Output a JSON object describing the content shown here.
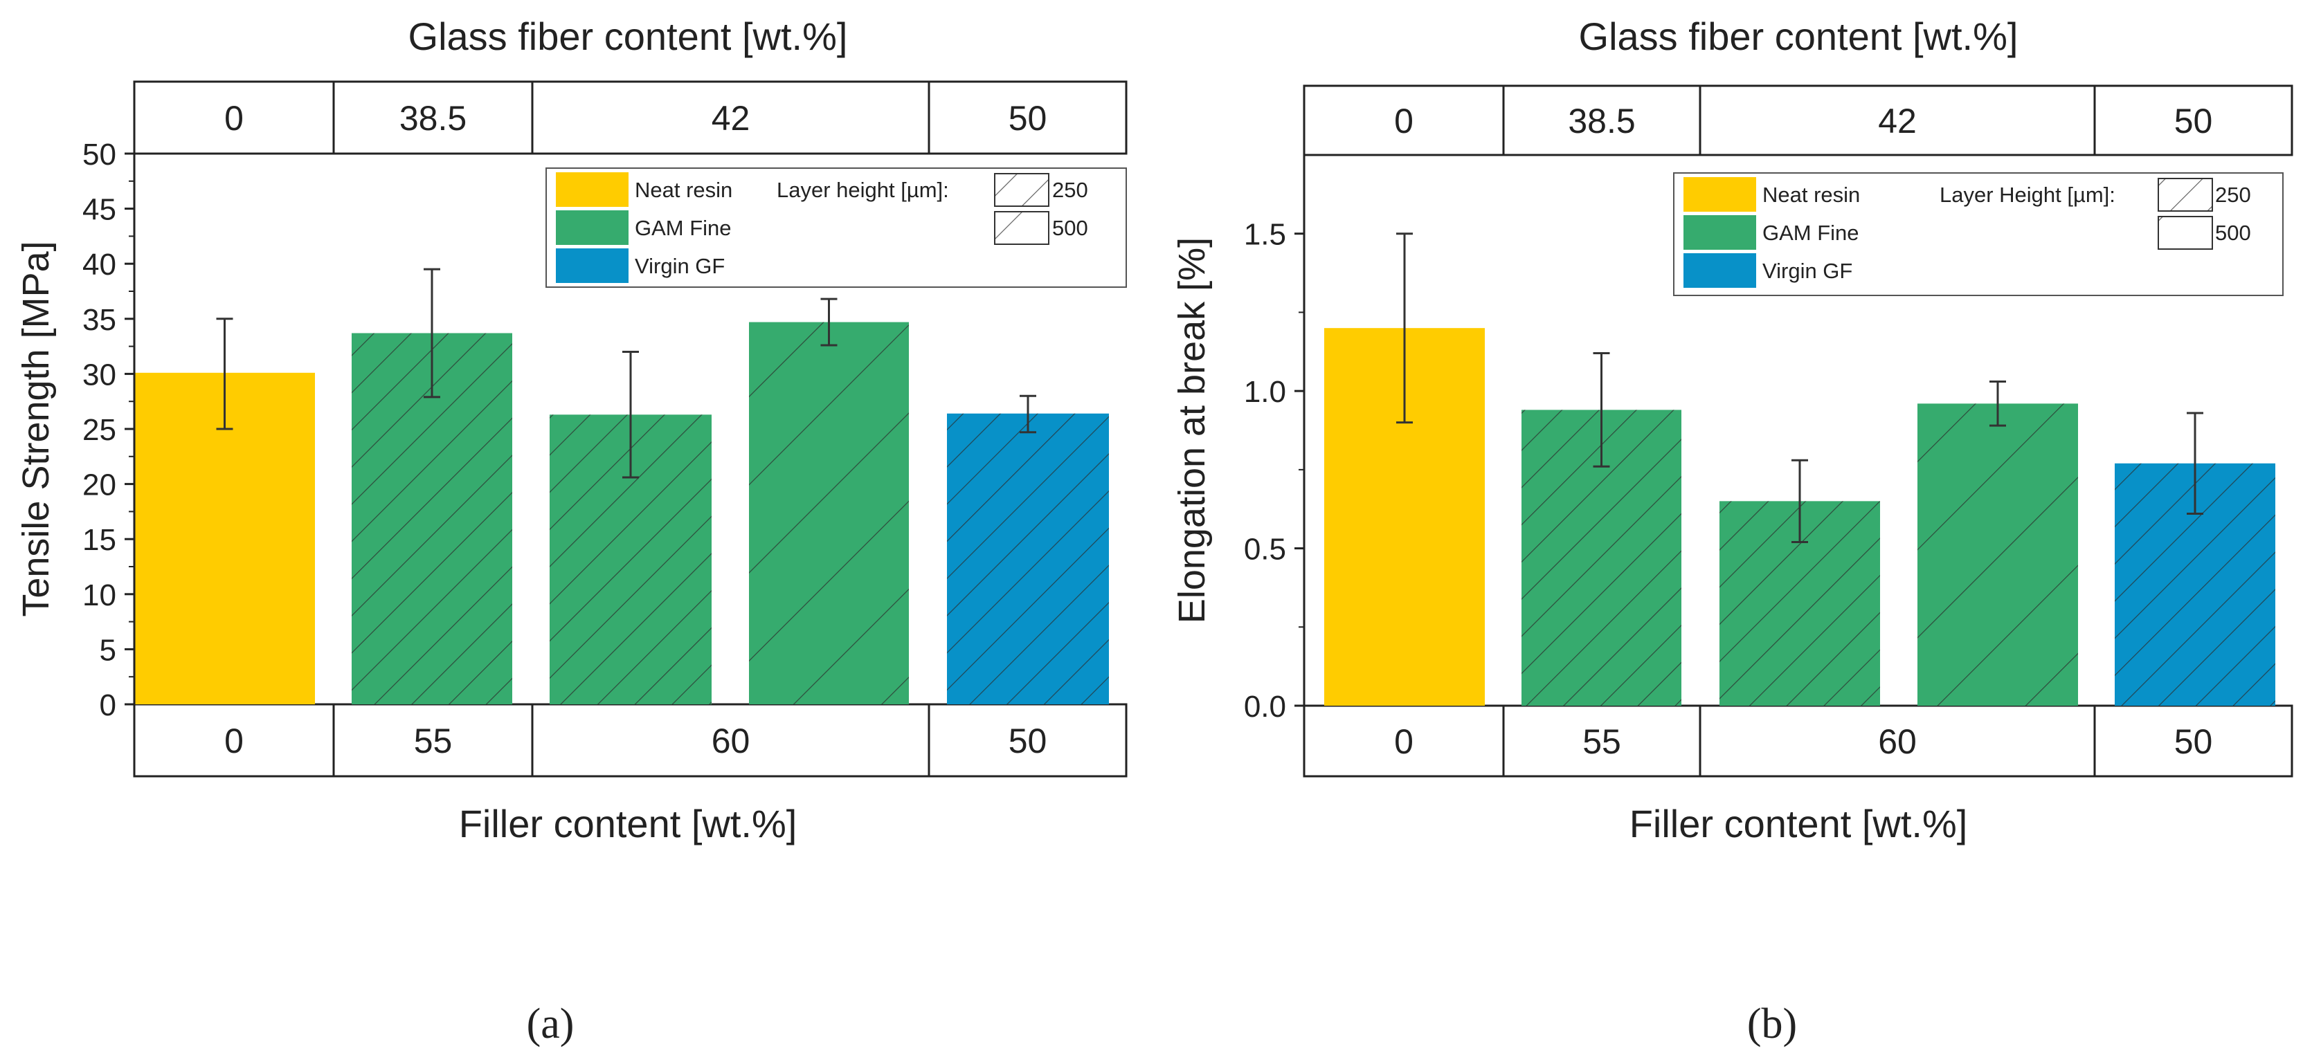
{
  "colors": {
    "neat_resin": "#FFCC00",
    "gam_fine": "#36AB6E",
    "virgin_gf": "#0891C8",
    "hatch": "#2a2a2a",
    "axis": "#222222",
    "error_bar": "#333333"
  },
  "chart_data": [
    {
      "panel": "a",
      "type": "bar",
      "top_axis_title": "Glass fiber content [wt.%]",
      "top_groups": [
        "0",
        "38.5",
        "42",
        "50"
      ],
      "bottom_groups": [
        "0",
        "55",
        "60",
        "50"
      ],
      "xlabel": "Filler content [wt.%]",
      "ylabel": "Tensile Strength [MPa]",
      "ylim": [
        0,
        50
      ],
      "yticks": [
        "0",
        "5",
        "10",
        "15",
        "20",
        "25",
        "30",
        "35",
        "40",
        "45",
        "50"
      ],
      "bars": [
        {
          "material": "Neat resin",
          "layer_height": null,
          "value": 30.1,
          "err_low": 25.0,
          "err_high": 35.0
        },
        {
          "material": "GAM Fine",
          "layer_height": 250,
          "value": 33.7,
          "err_low": 27.9,
          "err_high": 39.5
        },
        {
          "material": "GAM Fine",
          "layer_height": 250,
          "value": 26.3,
          "err_low": 20.6,
          "err_high": 32.0
        },
        {
          "material": "GAM Fine",
          "layer_height": 500,
          "value": 34.7,
          "err_low": 32.6,
          "err_high": 36.8
        },
        {
          "material": "Virgin GF",
          "layer_height": 250,
          "value": 26.4,
          "err_low": 24.7,
          "err_high": 28.0
        }
      ],
      "legend": {
        "position": "top-right",
        "materials": [
          "Neat resin",
          "GAM Fine",
          "Virgin GF"
        ],
        "layer_title": "Layer height [µm]:",
        "layer_heights": [
          "250",
          "500"
        ]
      }
    },
    {
      "panel": "b",
      "type": "bar",
      "top_axis_title": "Glass fiber content [wt.%]",
      "top_groups": [
        "0",
        "38.5",
        "42",
        "50"
      ],
      "bottom_groups": [
        "0",
        "55",
        "60",
        "50"
      ],
      "xlabel": "Filler content [wt.%]",
      "ylabel": "Elongation at break [%]",
      "ylim": [
        0,
        1.75
      ],
      "yticks": [
        "0.0",
        "0.5",
        "1.0",
        "1.5"
      ],
      "bars": [
        {
          "material": "Neat resin",
          "layer_height": null,
          "value": 1.2,
          "err_low": 0.9,
          "err_high": 1.5
        },
        {
          "material": "GAM Fine",
          "layer_height": 250,
          "value": 0.94,
          "err_low": 0.76,
          "err_high": 1.12
        },
        {
          "material": "GAM Fine",
          "layer_height": 250,
          "value": 0.65,
          "err_low": 0.52,
          "err_high": 0.78
        },
        {
          "material": "GAM Fine",
          "layer_height": 500,
          "value": 0.96,
          "err_low": 0.89,
          "err_high": 1.03
        },
        {
          "material": "Virgin GF",
          "layer_height": 250,
          "value": 0.77,
          "err_low": 0.61,
          "err_high": 0.93
        }
      ],
      "legend": {
        "position": "top-right",
        "materials": [
          "Neat resin",
          "GAM Fine",
          "Virgin GF"
        ],
        "layer_title": "Layer Height [µm]:",
        "layer_heights": [
          "250",
          "500"
        ]
      }
    }
  ],
  "panel_labels": [
    "(a)",
    "(b)"
  ]
}
